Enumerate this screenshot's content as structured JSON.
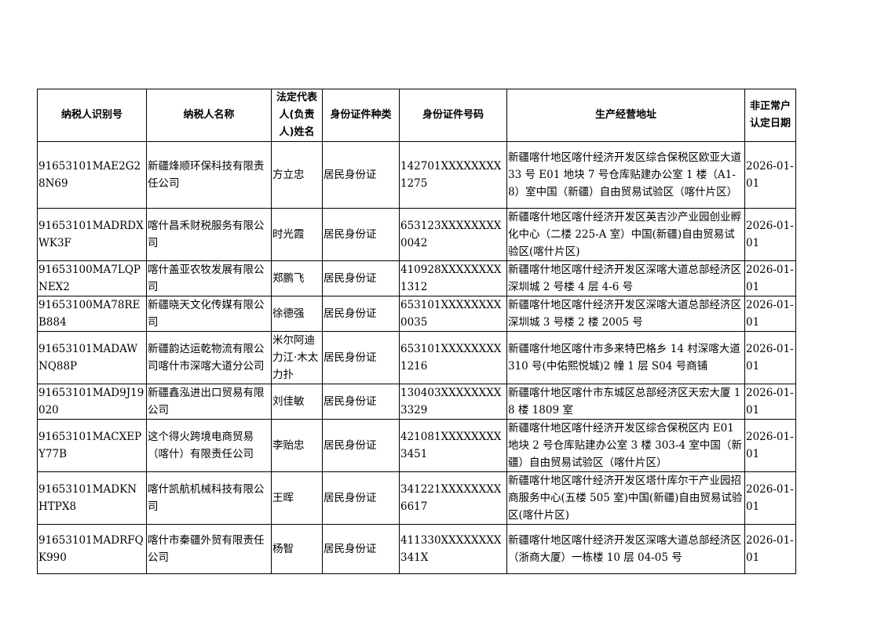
{
  "headers": [
    "纳税人识别号",
    "纳税人名称",
    "法定代表人(负责人)姓名",
    "身份证件种类",
    "身份证件号码",
    "生产经营地址",
    "非正常户认定日期"
  ],
  "rows": [
    {
      "id": "91653101MAE2G28N69",
      "name": "新疆烽顺环保科技有限责任公司",
      "rep": "方立忠",
      "id_type": "居民身份证",
      "id_no": "142701XXXXXXXX1275",
      "address": "新疆喀什地区喀什经济开发区综合保税区欧亚大道 33 号 E01 地块 7 号仓库贴建办公室 1 楼（A1-8）室中国（新疆）自由贸易试验区（喀什片区）",
      "date": "2026-01-01"
    },
    {
      "id": "91653101MADRDXWK3F",
      "name": "喀什昌禾财税服务有限公司",
      "rep": "时光霞",
      "id_type": "居民身份证",
      "id_no": "653123XXXXXXXX0042",
      "address": "新疆喀什地区喀什经济开发区英吉沙产业园创业孵化中心（二楼 225-A 室）中国(新疆)自由贸易试验区(喀什片区)",
      "date": "2026-01-01"
    },
    {
      "id": "91653100MA7LQPNEX2",
      "name": "喀什盖亚农牧发展有限公司",
      "rep": "郑鹏飞",
      "id_type": "居民身份证",
      "id_no": "410928XXXXXXXX1312",
      "address": "新疆喀什地区喀什经济开发区深喀大道总部经济区深圳城 2 号楼 4 层 4-6 号",
      "date": "2026-01-01"
    },
    {
      "id": "91653100MA78REB884",
      "name": "新疆晓天文化传媒有限公司",
      "rep": "徐德强",
      "id_type": "居民身份证",
      "id_no": "653101XXXXXXXX0035",
      "address": "新疆喀什地区喀什经济开发区深喀大道总部经济区深圳城 3 号楼 2 楼 2005 号",
      "date": "2026-01-01"
    },
    {
      "id": "91653101MADAWNQ88P",
      "name": "新疆韵达运乾物流有限公司喀什市深喀大道分公司",
      "rep": "米尔阿迪力江·木太力扑",
      "id_type": "居民身份证",
      "id_no": "653101XXXXXXXX1216",
      "address": "新疆喀什地区喀什市多来特巴格乡 14 村深喀大道 310 号(中佑熙悦城)2 幢 1 层 S04 号商铺",
      "date": "2026-01-01"
    },
    {
      "id": "91653101MAD9J19020",
      "name": "新疆鑫泓进出口贸易有限公司",
      "rep": "刘佳敏",
      "id_type": "居民身份证",
      "id_no": "130403XXXXXXXX3329",
      "address": "新疆喀什地区喀什市东城区总部经济区天宏大厦 18 楼 1809 室",
      "date": "2026-01-01"
    },
    {
      "id": "91653101MACXEPY77B",
      "name": "这个得火跨境电商贸易（喀什）有限责任公司",
      "rep": "李贻忠",
      "id_type": "居民身份证",
      "id_no": "421081XXXXXXXX3451",
      "address": "新疆喀什地区喀什经济开发区综合保税区内 E01 地块 2 号仓库贴建办公室 3 楼 303-4 室中国（新疆）自由贸易试验区（喀什片区）",
      "date": "2026-01-01"
    },
    {
      "id": "91653101MADKNHTPX8",
      "name": "喀什凯航机械科技有限公司",
      "rep": "王晖",
      "id_type": "居民身份证",
      "id_no": "341221XXXXXXXX6617",
      "address": "新疆喀什地区喀什经济开发区塔什库尔干产业园招商服务中心(五楼 505 室)中国(新疆)自由贸易试验区(喀什片区)",
      "date": "2026-01-01"
    },
    {
      "id": "91653101MADRFQK990",
      "name": "喀什市秦疆外贸有限责任公司",
      "rep": "杨智",
      "id_type": "居民身份证",
      "id_no": "411330XXXXXXXX341X",
      "address": "新疆喀什地区喀什经济开发区深喀大道总部经济区（浙商大厦）一栋楼 10 层 04-05 号",
      "date": "2026-01-01"
    }
  ]
}
